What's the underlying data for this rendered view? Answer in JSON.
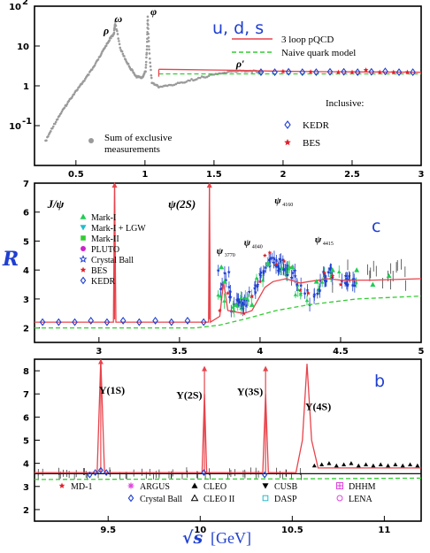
{
  "figure": {
    "y_axis_label": "R",
    "x_axis_label": {
      "symbol": "√s",
      "unit": "[GeV]"
    }
  },
  "chart_data": [
    {
      "type": "scatter",
      "panel_tag": "u, d, s",
      "xlim": [
        0.2,
        3.0
      ],
      "ylim_log10": [
        -2,
        2
      ],
      "yscale": "log",
      "x_ticks": [
        "0.5",
        "1",
        "1.5",
        "2",
        "2.5",
        "3"
      ],
      "y_ticks": [
        {
          "v": 2,
          "label": "10",
          "exp": "2"
        },
        {
          "v": 1,
          "label": "10",
          "exp": ""
        },
        {
          "v": 0,
          "label": "1",
          "exp": ""
        },
        {
          "v": -1,
          "label": "10",
          "exp": "-1"
        }
      ],
      "resonances": [
        {
          "label": "ρ",
          "x": 0.775,
          "y": 20
        },
        {
          "label": "ω",
          "x": 0.783,
          "y": 40
        },
        {
          "label": "φ",
          "x": 1.02,
          "y": 55
        },
        {
          "label": "ρ′",
          "x": 1.7,
          "y": 2.7
        }
      ],
      "legend_top": [
        {
          "label": "3 loop pQCD",
          "color": "#e8434b",
          "style": "solid"
        },
        {
          "label": "Naive quark model",
          "color": "#33cc33",
          "style": "dashed"
        }
      ],
      "legend_bottom": {
        "title": "Inclusive:",
        "items": [
          {
            "label": "KEDR",
            "marker": "diamond",
            "color": "#1f3fd0"
          },
          {
            "label": "BES",
            "marker": "star",
            "color": "#e0202a"
          }
        ],
        "exclusive": "Sum of exclusive measurements"
      },
      "series": [
        {
          "name": "Sum of exclusive measurements",
          "x": [
            0.28,
            0.33,
            0.38,
            0.43,
            0.48,
            0.53,
            0.58,
            0.63,
            0.68,
            0.72,
            0.75,
            0.775,
            0.785,
            0.82,
            0.86,
            0.9,
            0.94,
            0.98,
            1.005,
            1.015,
            1.02,
            1.03,
            1.05,
            1.1,
            1.2,
            1.3,
            1.4,
            1.5,
            1.6,
            1.7,
            1.8,
            1.85
          ],
          "y": [
            0.04,
            0.09,
            0.18,
            0.33,
            0.6,
            1.0,
            1.7,
            3.0,
            6.0,
            10.5,
            16.0,
            20.0,
            40.0,
            9.0,
            4.5,
            2.6,
            1.7,
            1.6,
            2.4,
            10.0,
            55.0,
            8.0,
            1.2,
            0.95,
            1.05,
            1.3,
            1.6,
            1.9,
            2.2,
            2.4,
            2.3,
            2.2
          ]
        },
        {
          "name": "KEDR",
          "x": [
            1.84,
            1.94,
            2.04,
            2.14,
            2.24,
            2.34,
            2.44,
            2.54,
            2.64,
            2.74,
            2.84,
            2.94
          ],
          "y": [
            2.2,
            2.2,
            2.25,
            2.2,
            2.2,
            2.25,
            2.25,
            2.2,
            2.25,
            2.3,
            2.2,
            2.2
          ]
        },
        {
          "name": "BES",
          "x": [
            2.0,
            2.2,
            2.4,
            2.5,
            2.6,
            2.7,
            2.8,
            2.9
          ],
          "y": [
            2.3,
            2.25,
            2.2,
            2.2,
            2.5,
            2.2,
            2.2,
            2.2
          ]
        },
        {
          "name": "3 loop pQCD",
          "x": [
            1.1,
            1.3,
            1.5,
            1.7,
            1.9,
            2.2,
            2.5,
            3.0
          ],
          "y": [
            2.6,
            2.55,
            2.5,
            2.45,
            2.35,
            2.28,
            2.24,
            2.2
          ]
        },
        {
          "name": "Naive quark model",
          "x": [
            1.1,
            3.0
          ],
          "y": [
            2.0,
            2.0
          ]
        }
      ]
    },
    {
      "type": "scatter",
      "panel_tag": "c",
      "xlim": [
        2.6,
        5.0
      ],
      "ylim": [
        1.5,
        7
      ],
      "x_ticks": [
        "3",
        "3.5",
        "4",
        "4.5",
        "5"
      ],
      "y_ticks": [
        "2",
        "3",
        "4",
        "5",
        "6",
        "7"
      ],
      "resonances": [
        {
          "label": "J/ψ",
          "x": 3.097,
          "y": 6.2
        },
        {
          "label": "ψ(2S)",
          "x": 3.686,
          "y": 6.2
        },
        {
          "label": "ψ3770",
          "x": 3.773,
          "y": 4.8
        },
        {
          "label": "ψ4040",
          "x": 4.04,
          "y": 5.1
        },
        {
          "label": "ψ4160",
          "x": 4.16,
          "y": 6.4
        },
        {
          "label": "ψ4415",
          "x": 4.415,
          "y": 5.1
        }
      ],
      "legend": [
        {
          "label": "Mark-I",
          "marker": "triangle-up",
          "color": "#22cc55"
        },
        {
          "label": "Mark-I + LGW",
          "marker": "triangle-down",
          "color": "#22bbcc"
        },
        {
          "label": "Mark-II",
          "marker": "square",
          "color": "#33cc33"
        },
        {
          "label": "PLUTO",
          "marker": "circle",
          "color": "#cc22cc"
        },
        {
          "label": "Crystal Ball",
          "marker": "star-open",
          "color": "#1f3fd0"
        },
        {
          "label": "BES",
          "marker": "star",
          "color": "#e0202a"
        },
        {
          "label": "KEDR",
          "marker": "diamond",
          "color": "#1f3fd0"
        }
      ],
      "series": [
        {
          "name": "KEDR",
          "x": [
            2.65,
            2.75,
            2.85,
            2.95,
            3.05,
            3.15,
            3.25,
            3.35,
            3.45,
            3.55,
            3.65
          ],
          "y": [
            2.2,
            2.2,
            2.2,
            2.25,
            2.2,
            2.25,
            2.2,
            2.25,
            2.2,
            2.25,
            2.2
          ]
        },
        {
          "name": "BES",
          "x": [
            3.75,
            3.8,
            3.85,
            3.9,
            3.95,
            4.0,
            4.03,
            4.06,
            4.1,
            4.15,
            4.2,
            4.25,
            4.3,
            4.35,
            4.4,
            4.45,
            4.5
          ],
          "y": [
            2.6,
            3.2,
            2.8,
            2.5,
            3.1,
            3.6,
            4.5,
            4.6,
            4.2,
            4.3,
            4.1,
            3.3,
            3.2,
            3.6,
            3.9,
            3.8,
            3.5
          ]
        },
        {
          "name": "Mark-I",
          "x": [
            3.76,
            3.78,
            3.85,
            3.95,
            4.05,
            4.2,
            4.35,
            4.45,
            4.6,
            4.7,
            4.8
          ],
          "y": [
            4.1,
            3.6,
            2.8,
            2.8,
            4.2,
            4.1,
            3.6,
            4.0,
            4.0,
            3.5,
            3.8
          ]
        },
        {
          "name": "3 loop pQCD",
          "x": [
            2.6,
            3.09,
            3.097,
            3.105,
            3.68,
            3.686,
            3.692,
            3.75,
            3.773,
            3.8,
            3.9,
            3.95,
            4.03,
            4.08,
            4.16,
            4.25,
            4.3,
            4.42,
            4.5,
            4.7,
            5.0
          ],
          "y": [
            2.2,
            2.2,
            7.0,
            2.2,
            2.2,
            7.0,
            2.2,
            2.4,
            3.6,
            2.6,
            2.5,
            2.6,
            3.4,
            3.6,
            3.7,
            3.55,
            3.6,
            3.7,
            3.65,
            3.65,
            3.7
          ]
        },
        {
          "name": "Naive quark model",
          "x": [
            2.6,
            3.6,
            3.75,
            3.9,
            4.1,
            4.3,
            4.6,
            5.0
          ],
          "y": [
            2.0,
            2.0,
            2.1,
            2.3,
            2.6,
            2.8,
            3.0,
            3.1
          ]
        }
      ]
    },
    {
      "type": "scatter",
      "panel_tag": "b",
      "xlim": [
        9.1,
        11.2
      ],
      "ylim": [
        1.5,
        8.5
      ],
      "x_ticks": [
        "9.5",
        "10",
        "10.5",
        "11"
      ],
      "y_ticks": [
        "2",
        "3",
        "4",
        "5",
        "6",
        "7",
        "8"
      ],
      "resonances": [
        {
          "label": "Υ(1S)",
          "x": 9.46,
          "y": 7.0
        },
        {
          "label": "Υ(2S)",
          "x": 10.023,
          "y": 7.0
        },
        {
          "label": "Υ(3S)",
          "x": 10.355,
          "y": 7.0
        },
        {
          "label": "Υ(4S)",
          "x": 10.58,
          "y": 6.4
        }
      ],
      "legend": [
        {
          "label": "MD-1",
          "marker": "star",
          "color": "#e0202a"
        },
        {
          "label": "ARGUS",
          "marker": "asterisk",
          "color": "#dd44dd"
        },
        {
          "label": "CLEO",
          "marker": "triangle-up",
          "color": "#000000"
        },
        {
          "label": "CUSB",
          "marker": "triangle-down",
          "color": "#000000"
        },
        {
          "label": "DHHM",
          "marker": "cross-square",
          "color": "#dd44dd"
        },
        {
          "label": "Crystal Ball",
          "marker": "diamond",
          "color": "#1f3fd0"
        },
        {
          "label": "CLEO II",
          "marker": "triangle-open",
          "color": "#000000"
        },
        {
          "label": "DASP",
          "marker": "square-open",
          "color": "#22bbcc"
        },
        {
          "label": "LENA",
          "marker": "circle-open",
          "color": "#dd44dd"
        }
      ],
      "series": [
        {
          "name": "CLEO",
          "x": [
            10.62,
            10.66,
            10.7,
            10.74,
            10.78,
            10.82,
            10.86,
            10.9,
            10.94,
            10.98,
            11.02,
            11.06,
            11.1,
            11.14,
            11.18
          ],
          "y": [
            3.9,
            3.95,
            4.0,
            3.9,
            3.95,
            4.0,
            3.9,
            3.95,
            3.9,
            3.95,
            3.9,
            3.95,
            3.9,
            3.95,
            3.9
          ]
        },
        {
          "name": "Crystal Ball",
          "x": [
            9.4,
            9.43,
            9.46,
            9.49,
            10.02,
            10.35
          ],
          "y": [
            3.5,
            3.6,
            3.7,
            3.6,
            3.6,
            3.5
          ]
        },
        {
          "name": "3 loop pQCD",
          "x": [
            9.1,
            9.44,
            9.46,
            9.48,
            10.01,
            10.023,
            10.035,
            10.34,
            10.355,
            10.37,
            10.52,
            10.555,
            10.58,
            10.605,
            10.64,
            11.2
          ],
          "y": [
            3.6,
            3.6,
            8.5,
            3.6,
            3.6,
            7.0,
            3.6,
            3.6,
            7.0,
            3.6,
            3.6,
            5.0,
            8.3,
            5.0,
            3.8,
            3.8
          ]
        },
        {
          "name": "Naive quark model",
          "x": [
            9.1,
            10.5,
            11.2
          ],
          "y": [
            3.3,
            3.33,
            3.36
          ]
        }
      ]
    }
  ]
}
